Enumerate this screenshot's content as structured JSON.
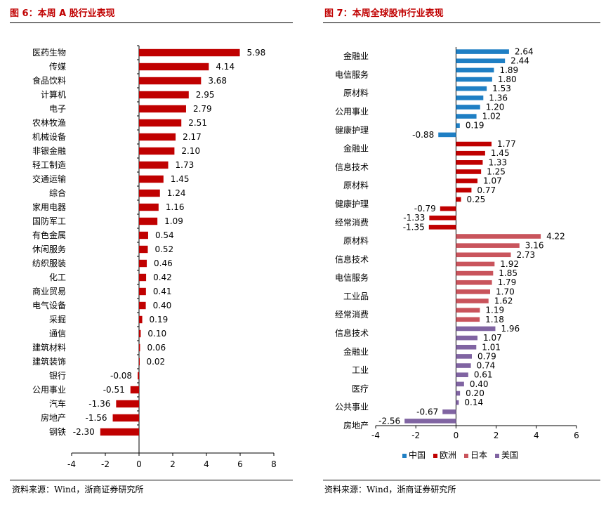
{
  "left_panel": {
    "title": "图 6：本周 A 股行业表现",
    "source": "资料来源：Wind，浙商证券研究所"
  },
  "right_panel": {
    "title": "图 7：本周全球股市行业表现",
    "source": "资料来源：Wind，浙商证券研究所"
  },
  "colors": {
    "cn": "#1f7fc4",
    "eu": "#c00000",
    "jp": "#c9545c",
    "us": "#8064a2",
    "left_bar": "#c00000"
  },
  "chart_data": [
    {
      "type": "bar",
      "orientation": "horizontal",
      "title": "本周 A 股行业表现",
      "categories": [
        "医药生物",
        "传媒",
        "食品饮料",
        "计算机",
        "电子",
        "农林牧渔",
        "机械设备",
        "非银金融",
        "轻工制造",
        "交通运输",
        "综合",
        "家用电器",
        "国防军工",
        "有色金属",
        "休闲服务",
        "纺织服装",
        "化工",
        "商业贸易",
        "电气设备",
        "采掘",
        "通信",
        "建筑材料",
        "建筑装饰",
        "银行",
        "公用事业",
        "汽车",
        "房地产",
        "钢铁"
      ],
      "values": [
        5.98,
        4.14,
        3.68,
        2.95,
        2.79,
        2.51,
        2.17,
        2.1,
        1.73,
        1.45,
        1.24,
        1.16,
        1.09,
        0.54,
        0.52,
        0.46,
        0.42,
        0.41,
        0.4,
        0.19,
        0.1,
        0.06,
        0.02,
        -0.08,
        -0.51,
        -1.36,
        -1.56,
        -2.3
      ],
      "value_labels": [
        "5.98",
        "4.14",
        "3.68",
        "2.95",
        "2.79",
        "2.51",
        "2.17",
        "2.10",
        "1.73",
        "1.45",
        "1.24",
        "1.16",
        "1.09",
        "0.54",
        "0.52",
        "0.46",
        "0.42",
        "0.41",
        "0.40",
        "0.19",
        "0.10",
        "0.06",
        "0.02",
        "-0.08",
        "-0.51",
        "-1.36",
        "-1.56",
        "-2.30"
      ],
      "xlim": [
        -4,
        8
      ],
      "xticks": [
        "-4",
        "-2",
        "0",
        "2",
        "4",
        "6",
        "8"
      ]
    },
    {
      "type": "bar",
      "orientation": "horizontal",
      "title": "本周全球股市行业表现",
      "xlim": [
        -4,
        6
      ],
      "xticks": [
        "-4",
        "-2",
        "0",
        "2",
        "4",
        "6"
      ],
      "legend_position": "bottom",
      "series": [
        {
          "name": "中国",
          "key": "cn",
          "values": [
            2.64,
            2.44,
            1.89,
            1.8,
            1.53,
            1.36,
            1.2,
            1.02,
            0.19,
            -0.88
          ],
          "value_labels": [
            "2.64",
            "2.44",
            "1.89",
            "1.80",
            "1.53",
            "1.36",
            "1.20",
            "1.02",
            "0.19",
            "-0.88"
          ],
          "category_labels": [
            "金融业",
            "电信服务",
            "原材料",
            "公用事业",
            "健康护理"
          ]
        },
        {
          "name": "欧洲",
          "key": "eu",
          "values": [
            1.77,
            1.45,
            1.33,
            1.25,
            1.07,
            0.77,
            0.25,
            -0.79,
            -1.33,
            -1.35
          ],
          "value_labels": [
            "1.77",
            "1.45",
            "1.33",
            "1.25",
            "1.07",
            "0.77",
            "0.25",
            "-0.79",
            "-1.33",
            "-1.35"
          ],
          "category_labels": [
            "金融业",
            "信息技术",
            "原材料",
            "健康护理",
            "经常消费"
          ]
        },
        {
          "name": "日本",
          "key": "jp",
          "values": [
            4.22,
            3.16,
            2.73,
            1.92,
            1.85,
            1.79,
            1.7,
            1.62,
            1.19,
            1.18
          ],
          "value_labels": [
            "4.22",
            "3.16",
            "2.73",
            "1.92",
            "1.85",
            "1.79",
            "1.70",
            "1.62",
            "1.19",
            "1.18"
          ],
          "category_labels": [
            "原材料",
            "信息技术",
            "电信服务",
            "工业品",
            "经常消费"
          ]
        },
        {
          "name": "美国",
          "key": "us",
          "values": [
            1.96,
            1.07,
            1.01,
            0.79,
            0.74,
            0.61,
            0.4,
            0.2,
            0.14,
            -0.67,
            -2.56
          ],
          "value_labels": [
            "1.96",
            "1.07",
            "1.01",
            "0.79",
            "0.74",
            "0.61",
            "0.40",
            "0.20",
            "0.14",
            "-0.67",
            "-2.56"
          ],
          "category_labels": [
            "信息技术",
            "金融业",
            "工业",
            "医疗",
            "公共事业",
            "房地产"
          ]
        }
      ]
    }
  ]
}
